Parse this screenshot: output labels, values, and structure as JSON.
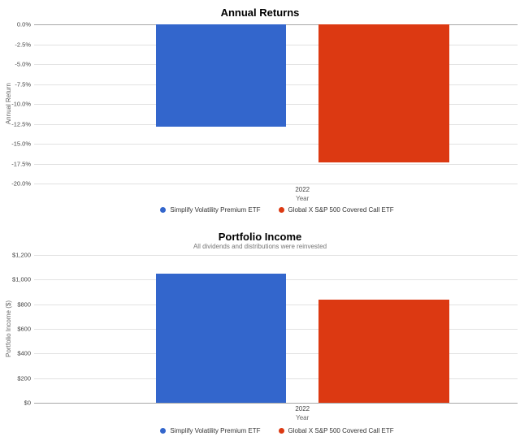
{
  "page": {
    "background": "#ffffff"
  },
  "chart_data": [
    {
      "id": "annual-returns",
      "type": "bar",
      "title": "Annual Returns",
      "xlabel": "Year",
      "ylabel": "Annual Return",
      "categories": [
        "2022"
      ],
      "series": [
        {
          "id": "simplify",
          "name": "Simplify Volatility Premium ETF",
          "color": "#3366cc",
          "values": [
            -12.9
          ]
        },
        {
          "id": "globalx",
          "name": "Global X S&P 500 Covered Call ETF",
          "color": "#dc3912",
          "values": [
            -17.3
          ]
        }
      ],
      "ylim": [
        -20,
        0
      ],
      "yticks": [
        {
          "value": 0,
          "label": "0.0%"
        },
        {
          "value": -2.5,
          "label": "-2.5%"
        },
        {
          "value": -5,
          "label": "-5.0%"
        },
        {
          "value": -7.5,
          "label": "-7.5%"
        },
        {
          "value": -10,
          "label": "-10.0%"
        },
        {
          "value": -12.5,
          "label": "-12.5%"
        },
        {
          "value": -15,
          "label": "-15.0%"
        },
        {
          "value": -17.5,
          "label": "-17.5%"
        },
        {
          "value": -20,
          "label": "-20.0%"
        }
      ],
      "grid": true,
      "legend_position": "bottom"
    },
    {
      "id": "portfolio-income",
      "type": "bar",
      "title": "Portfolio Income",
      "subtitle": "All dividends and distributions were reinvested",
      "xlabel": "Year",
      "ylabel": "Portfolio Income ($)",
      "categories": [
        "2022"
      ],
      "series": [
        {
          "id": "simplify",
          "name": "Simplify Volatility Premium ETF",
          "color": "#3366cc",
          "values": [
            1050
          ]
        },
        {
          "id": "globalx",
          "name": "Global X S&P 500 Covered Call ETF",
          "color": "#dc3912",
          "values": [
            840
          ]
        }
      ],
      "ylim": [
        0,
        1200
      ],
      "yticks": [
        {
          "value": 0,
          "label": "$0"
        },
        {
          "value": 200,
          "label": "$200"
        },
        {
          "value": 400,
          "label": "$400"
        },
        {
          "value": 600,
          "label": "$600"
        },
        {
          "value": 800,
          "label": "$800"
        },
        {
          "value": 1000,
          "label": "$1,000"
        },
        {
          "value": 1200,
          "label": "$1,200"
        }
      ],
      "grid": true,
      "legend_position": "bottom"
    }
  ]
}
